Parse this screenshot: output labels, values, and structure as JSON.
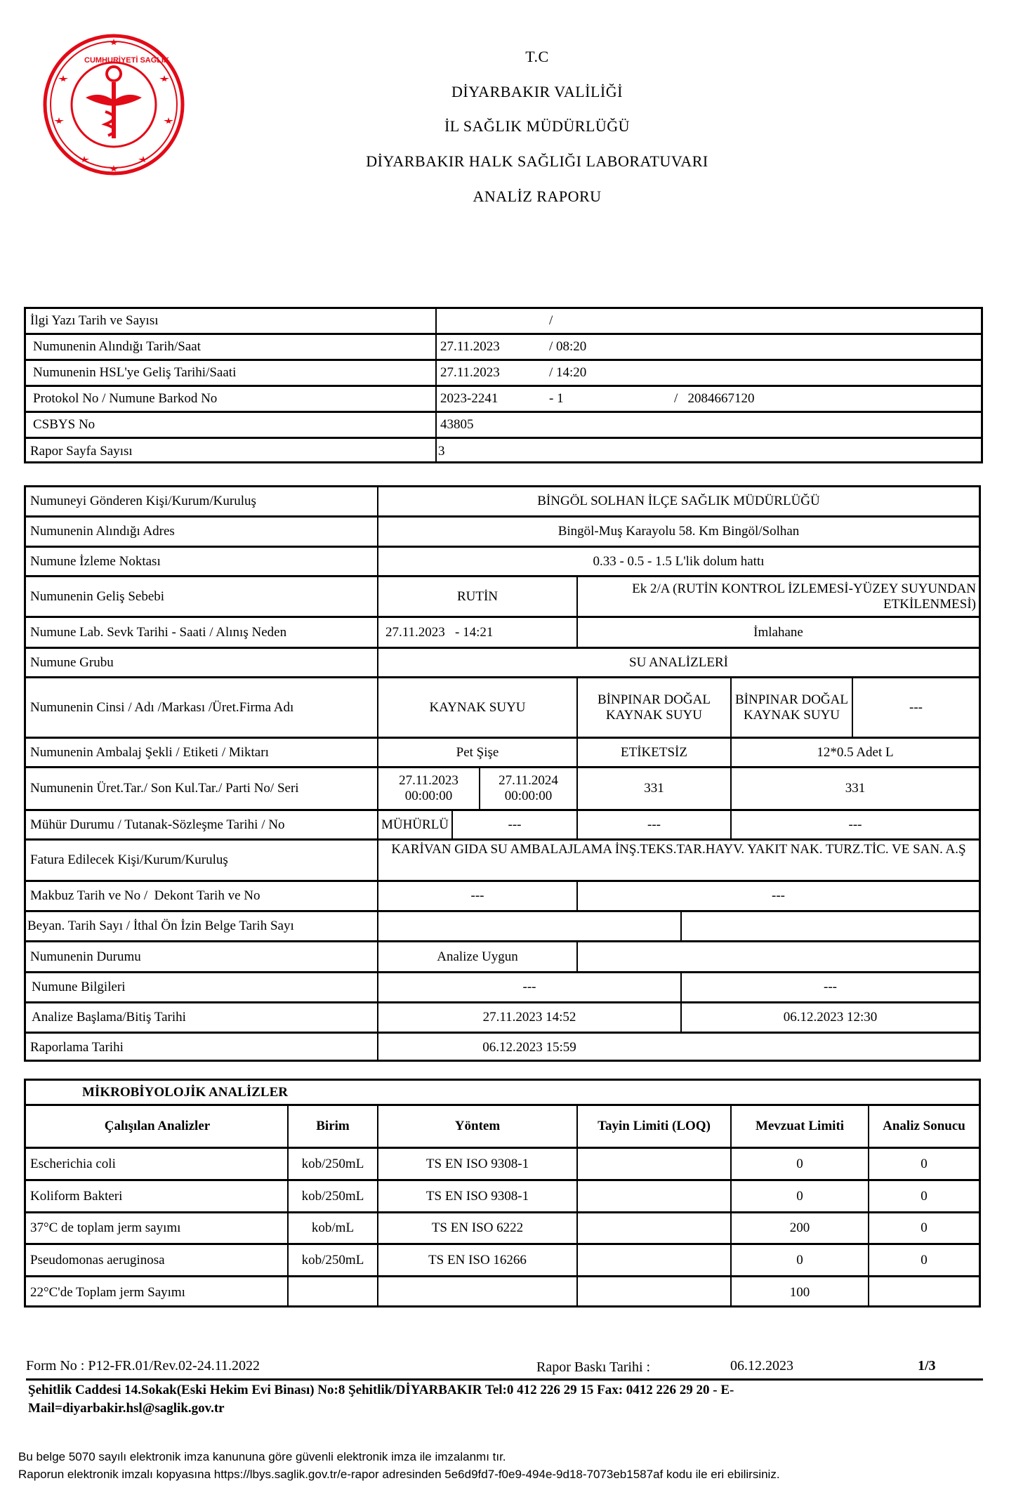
{
  "header": {
    "line1": "T.C",
    "line2": "DİYARBAKIR VALİLİĞİ",
    "line3": "İL SAĞLIK MÜDÜRLÜĞÜ",
    "line4": "DİYARBAKIR HALK SAĞLIĞI LABORATUVARI",
    "line5": "ANALİZ RAPORU",
    "logo_text": "TÜRKİYE CUMHURİYETİ SAĞLIK BAKANLIĞI",
    "logo_color": "#e30a17"
  },
  "info": {
    "r1": {
      "label": "İlgi Yazı Tarih ve Sayısı",
      "a": "",
      "b": "/"
    },
    "r2": {
      "label": "Numunenin Alındığı Tarih/Saat",
      "a": "27.11.2023",
      "b": "/ 08:20"
    },
    "r3": {
      "label": "Numunenin HSL'ye Geliş Tarihi/Saati",
      "a": "27.11.2023",
      "b": "/ 14:20"
    },
    "r4": {
      "label": "Protokol No / Numune Barkod No",
      "a": "2023-2241",
      "b": "- 1",
      "c": "/   2084667120"
    },
    "r5": {
      "label": "CSBYS No",
      "a": "43805"
    },
    "r6": {
      "label": "Rapor Sayfa Sayısı",
      "a": "3"
    }
  },
  "sample": {
    "sender": {
      "label": "Numuneyi Gönderen Kişi/Kurum/Kuruluş",
      "value": "BİNGÖL SOLHAN İLÇE SAĞLIK MÜDÜRLÜĞÜ"
    },
    "address": {
      "label": "Numunenin Alındığı Adres",
      "value": "Bingöl-Muş Karayolu 58. Km  Bingöl/Solhan"
    },
    "point": {
      "label": "Numune İzleme Noktası",
      "value": "0.33 - 0.5 - 1.5 L'lik dolum hattı"
    },
    "reason": {
      "label": "Numunenin Geliş Sebebi",
      "a": "RUTİN",
      "b": "Ek 2/A (RUTİN KONTROL İZLEMESİ-YÜZEY SUYUNDAN ETKİLENMESİ)"
    },
    "lab": {
      "label": "Numune Lab. Sevk  Tarihi - Saati / Alınış Neden",
      "a": "27.11.2023   - 14:21",
      "b": "İmlahane"
    },
    "group": {
      "label": "Numune Grubu",
      "value": "SU ANALİZLERİ"
    },
    "type": {
      "label": "Numunenin Cinsi / Adı /Markası /Üret.Firma Adı",
      "a": "KAYNAK SUYU",
      "b": "BİNPINAR DOĞAL KAYNAK SUYU",
      "c": "BİNPINAR DOĞAL KAYNAK SUYU",
      "d": "---"
    },
    "package": {
      "label": "Numunenin Ambalaj Şekli / Etiketi / Miktarı",
      "a": "Pet Şişe",
      "b": "ETİKETSİZ",
      "c": "12*0.5 Adet L"
    },
    "production": {
      "label": "Numunenin Üret.Tar./ Son Kul.Tar./ Parti No/ Seri",
      "a": "27.11.2023 00:00:00",
      "b": "27.11.2024 00:00:00",
      "c": "331",
      "d": "331"
    },
    "seal": {
      "label": "Mühür Durumu / Tutanak-Sözleşme Tarihi / No",
      "a": "MÜHÜRLÜ",
      "b": "---",
      "c": "---",
      "d": "---"
    },
    "invoice": {
      "label": "Fatura Edilecek Kişi/Kurum/Kuruluş",
      "value": "KARİVAN GIDA SU AMBALAJLAMA İNŞ.TEKS.TAR.HAYV. YAKIT NAK. TURZ.TİC. VE SAN. A.Ş"
    },
    "receipt": {
      "label": "Makbuz Tarih ve No /  Dekont Tarih ve No",
      "a": "---",
      "b": "---"
    },
    "declaration": {
      "label": "Beyan. Tarih Sayı / İthal Ön İzin Belge Tarih Sayı",
      "a": "",
      "b": ""
    },
    "status": {
      "label": "Numunenin Durumu",
      "a": "Analize Uygun",
      "b": ""
    },
    "info": {
      "label": "Numune Bilgileri",
      "a": "---",
      "b": "---"
    },
    "analysis": {
      "label": "Analize Başlama/Bitiş Tarihi",
      "a": "27.11.2023 14:52",
      "b": "06.12.2023 12:30"
    },
    "reporting": {
      "label": "Raporlama Tarihi",
      "a": "06.12.2023 15:59"
    }
  },
  "micro": {
    "title": "MİKROBİYOLOJİK ANALİZLER",
    "headers": [
      "Çalışılan Analizler",
      "Birim",
      "Yöntem",
      "Tayin Limiti (LOQ)",
      "Mevzuat Limiti",
      "Analiz Sonucu"
    ],
    "rows": [
      [
        "Escherichia coli",
        "kob/250mL",
        "TS EN ISO 9308-1",
        "",
        "0",
        "0"
      ],
      [
        "Koliform Bakteri",
        "kob/250mL",
        "TS EN ISO 9308-1",
        "",
        "0",
        "0"
      ],
      [
        "37°C de toplam jerm sayımı",
        "kob/mL",
        "TS EN ISO 6222",
        "",
        "200",
        "0"
      ],
      [
        "Pseudomonas aeruginosa",
        "kob/250mL",
        "TS EN ISO 16266",
        "",
        "0",
        "0"
      ],
      [
        "22°C'de Toplam jerm Sayımı",
        "",
        "",
        "",
        "100",
        ""
      ]
    ]
  },
  "footer": {
    "form_no": "Form No : P12-FR.01/Rev.02-24.11.2022",
    "print_label": "Rapor Baskı Tarihi :",
    "print_date": "06.12.2023",
    "page": "1/3",
    "address1": "Şehitlik Caddesi 14.Sokak(Eski Hekim Evi Binası) No:8 Şehitlik/DİYARBAKIR  Tel:0 412 226 29 15  Fax: 0412 226 29 20 - E-",
    "address2": "Mail=diyarbakir.hsl@saglik.gov.tr",
    "esign1": "Bu belge 5070 sayılı elektronik imza kanununa göre güvenli elektronik imza ile imzalanmı  tır.",
    "esign2": "Raporun elektronik imzalı kopyasına https://lbys.saglik.gov.tr/e-rapor adresinden 5e6d9fd7-f0e9-494e-9d18-7073eb1587af kodu ile eri  ebilirsiniz."
  }
}
